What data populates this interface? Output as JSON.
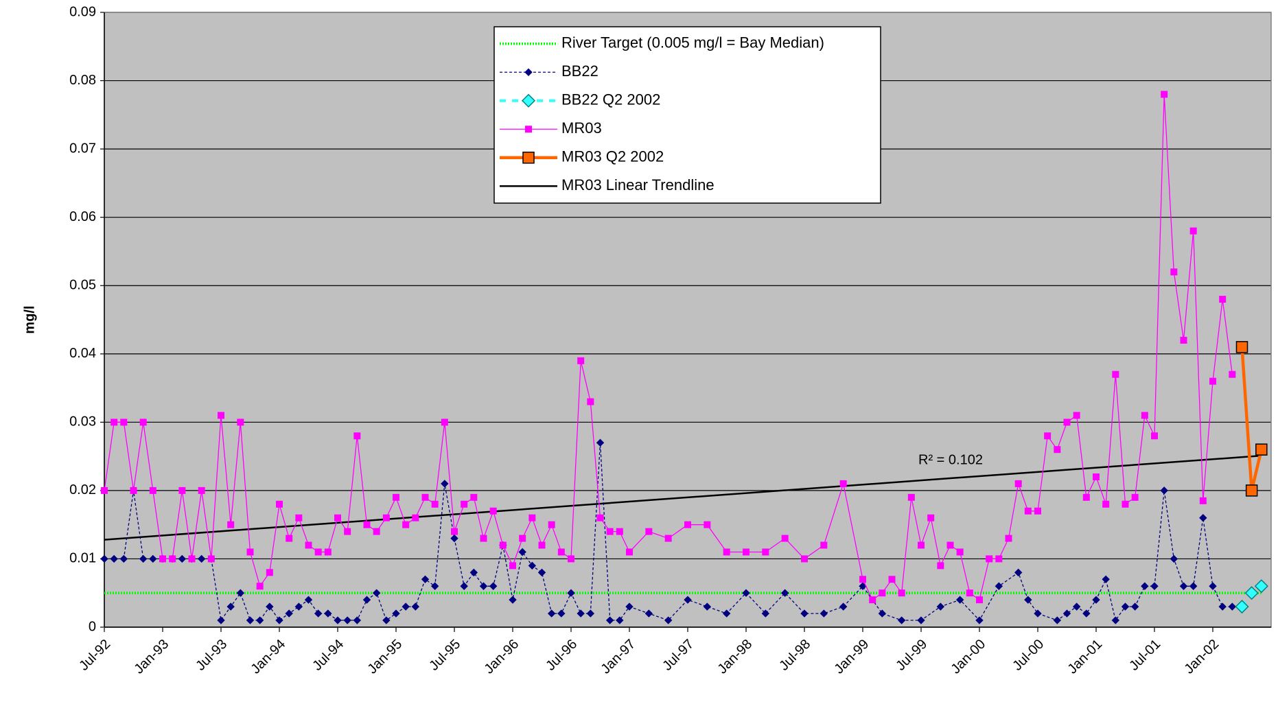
{
  "chart_data": {
    "type": "line",
    "y_label": "mg/l",
    "annotation": "R² = 0.102",
    "ylim": [
      0,
      0.09
    ],
    "yticks": [
      0,
      0.01,
      0.02,
      0.03,
      0.04,
      0.05,
      0.06,
      0.07,
      0.08,
      0.09
    ],
    "xlim": [
      "Jul-92",
      "Jul-02"
    ],
    "xticks": [
      "Jul-92",
      "Jan-93",
      "Jul-93",
      "Jan-94",
      "Jul-94",
      "Jan-95",
      "Jul-95",
      "Jan-96",
      "Jul-96",
      "Jan-97",
      "Jul-97",
      "Jan-98",
      "Jul-98",
      "Jan-99",
      "Jul-99",
      "Jan-00",
      "Jul-00",
      "Jan-01",
      "Jul-01",
      "Jan-02"
    ],
    "grid": true,
    "series": [
      {
        "name": "River Target (0.005 mg/l = Bay Median)",
        "color": "#00ff00",
        "x": [
          "Jul-92",
          "Jun-02"
        ],
        "values": [
          0.005,
          0.005
        ]
      },
      {
        "name": "BB22",
        "color": "#000080",
        "x": [
          "Jul-92",
          "Aug-92",
          "Sep-92",
          "Oct-92",
          "Nov-92",
          "Dec-92",
          "Jan-93",
          "Feb-93",
          "Mar-93",
          "Apr-93",
          "May-93",
          "Jun-93",
          "Jul-93",
          "Aug-93",
          "Sep-93",
          "Oct-93",
          "Nov-93",
          "Dec-93",
          "Jan-94",
          "Feb-94",
          "Mar-94",
          "Apr-94",
          "May-94",
          "Jun-94",
          "Jul-94",
          "Aug-94",
          "Sep-94",
          "Oct-94",
          "Nov-94",
          "Dec-94",
          "Jan-95",
          "Feb-95",
          "Mar-95",
          "Apr-95",
          "May-95",
          "Jun-95",
          "Jul-95",
          "Aug-95",
          "Sep-95",
          "Oct-95",
          "Nov-95",
          "Dec-95",
          "Jan-96",
          "Feb-96",
          "Mar-96",
          "Apr-96",
          "May-96",
          "Jun-96",
          "Jul-96",
          "Aug-96",
          "Sep-96",
          "Oct-96",
          "Nov-96",
          "Dec-96",
          "Jan-97",
          "Mar-97",
          "May-97",
          "Jul-97",
          "Sep-97",
          "Nov-97",
          "Jan-98",
          "Mar-98",
          "May-98",
          "Jul-98",
          "Sep-98",
          "Nov-98",
          "Jan-99",
          "Mar-99",
          "May-99",
          "Jul-99",
          "Sep-99",
          "Nov-99",
          "Jan-00",
          "Mar-00",
          "May-00",
          "Jun-00",
          "Jul-00",
          "Sep-00",
          "Oct-00",
          "Nov-00",
          "Dec-00",
          "Jan-01",
          "Feb-01",
          "Mar-01",
          "Apr-01",
          "May-01",
          "Jun-01",
          "Jul-01",
          "Aug-01",
          "Sep-01",
          "Oct-01",
          "Nov-01",
          "Dec-01",
          "Jan-02",
          "Feb-02",
          "Mar-02"
        ],
        "values": [
          0.01,
          0.01,
          0.01,
          0.02,
          0.01,
          0.01,
          0.01,
          0.01,
          0.01,
          0.01,
          0.01,
          0.01,
          0.001,
          0.003,
          0.005,
          0.001,
          0.001,
          0.003,
          0.001,
          0.002,
          0.003,
          0.004,
          0.002,
          0.002,
          0.001,
          0.001,
          0.001,
          0.004,
          0.005,
          0.001,
          0.002,
          0.003,
          0.003,
          0.007,
          0.006,
          0.021,
          0.013,
          0.006,
          0.008,
          0.006,
          0.006,
          0.012,
          0.004,
          0.011,
          0.009,
          0.008,
          0.002,
          0.002,
          0.005,
          0.002,
          0.002,
          0.027,
          0.001,
          0.001,
          0.003,
          0.002,
          0.001,
          0.004,
          0.003,
          0.002,
          0.005,
          0.002,
          0.005,
          0.002,
          0.002,
          0.003,
          0.006,
          0.002,
          0.001,
          0.001,
          0.003,
          0.004,
          0.001,
          0.006,
          0.008,
          0.004,
          0.002,
          0.001,
          0.002,
          0.003,
          0.002,
          0.004,
          0.007,
          0.001,
          0.003,
          0.003,
          0.006,
          0.006,
          0.02,
          0.01,
          0.006,
          0.006,
          0.016,
          0.006,
          0.003,
          0.003
        ]
      },
      {
        "name": "BB22 Q2 2002",
        "color": "#33ffff",
        "x": [
          "Apr-02",
          "May-02",
          "Jun-02"
        ],
        "values": [
          0.003,
          0.005,
          0.006
        ]
      },
      {
        "name": "MR03",
        "color": "#ff00ff",
        "x": [
          "Jul-92",
          "Aug-92",
          "Sep-92",
          "Oct-92",
          "Nov-92",
          "Dec-92",
          "Jan-93",
          "Feb-93",
          "Mar-93",
          "Apr-93",
          "May-93",
          "Jun-93",
          "Jul-93",
          "Aug-93",
          "Sep-93",
          "Oct-93",
          "Nov-93",
          "Dec-93",
          "Jan-94",
          "Feb-94",
          "Mar-94",
          "Apr-94",
          "May-94",
          "Jun-94",
          "Jul-94",
          "Aug-94",
          "Sep-94",
          "Oct-94",
          "Nov-94",
          "Dec-94",
          "Jan-95",
          "Feb-95",
          "Mar-95",
          "Apr-95",
          "May-95",
          "Jun-95",
          "Jul-95",
          "Aug-95",
          "Sep-95",
          "Oct-95",
          "Nov-95",
          "Dec-95",
          "Jan-96",
          "Feb-96",
          "Mar-96",
          "Apr-96",
          "May-96",
          "Jun-96",
          "Jul-96",
          "Aug-96",
          "Sep-96",
          "Oct-96",
          "Nov-96",
          "Dec-96",
          "Jan-97",
          "Mar-97",
          "May-97",
          "Jul-97",
          "Sep-97",
          "Nov-97",
          "Jan-98",
          "Mar-98",
          "May-98",
          "Jul-98",
          "Sep-98",
          "Nov-98",
          "Jan-99",
          "Feb-99",
          "Mar-99",
          "Apr-99",
          "May-99",
          "Jun-99",
          "Jul-99",
          "Aug-99",
          "Sep-99",
          "Oct-99",
          "Nov-99",
          "Dec-99",
          "Jan-00",
          "Feb-00",
          "Mar-00",
          "Apr-00",
          "May-00",
          "Jun-00",
          "Jul-00",
          "Aug-00",
          "Sep-00",
          "Oct-00",
          "Nov-00",
          "Dec-00",
          "Jan-01",
          "Feb-01",
          "Mar-01",
          "Apr-01",
          "May-01",
          "Jun-01",
          "Jul-01",
          "Aug-01",
          "Sep-01",
          "Oct-01",
          "Nov-01",
          "Dec-01",
          "Jan-02",
          "Feb-02",
          "Mar-02"
        ],
        "values": [
          0.02,
          0.03,
          0.03,
          0.02,
          0.03,
          0.02,
          0.01,
          0.01,
          0.02,
          0.01,
          0.02,
          0.01,
          0.031,
          0.015,
          0.03,
          0.011,
          0.006,
          0.008,
          0.018,
          0.013,
          0.016,
          0.012,
          0.011,
          0.011,
          0.016,
          0.014,
          0.028,
          0.015,
          0.014,
          0.016,
          0.019,
          0.015,
          0.016,
          0.019,
          0.018,
          0.03,
          0.014,
          0.018,
          0.019,
          0.013,
          0.017,
          0.012,
          0.009,
          0.013,
          0.016,
          0.012,
          0.015,
          0.011,
          0.01,
          0.039,
          0.033,
          0.016,
          0.014,
          0.014,
          0.011,
          0.014,
          0.013,
          0.015,
          0.015,
          0.011,
          0.011,
          0.011,
          0.013,
          0.01,
          0.012,
          0.021,
          0.007,
          0.004,
          0.005,
          0.007,
          0.005,
          0.019,
          0.012,
          0.016,
          0.009,
          0.012,
          0.011,
          0.005,
          0.004,
          0.01,
          0.01,
          0.013,
          0.021,
          0.017,
          0.017,
          0.028,
          0.026,
          0.03,
          0.031,
          0.019,
          0.022,
          0.018,
          0.037,
          0.018,
          0.019,
          0.031,
          0.028,
          0.078,
          0.052,
          0.042,
          0.058,
          0.0185,
          0.036,
          0.048,
          0.037
        ]
      },
      {
        "name": "MR03 Q2 2002",
        "color": "#ff6600",
        "x": [
          "Apr-02",
          "May-02",
          "Jun-02"
        ],
        "values": [
          0.041,
          0.02,
          0.026
        ]
      },
      {
        "name": "MR03 Linear Trendline",
        "color": "#000000",
        "x": [
          "Jul-92",
          "Jun-02"
        ],
        "values": [
          0.0128,
          0.0251
        ]
      }
    ]
  }
}
